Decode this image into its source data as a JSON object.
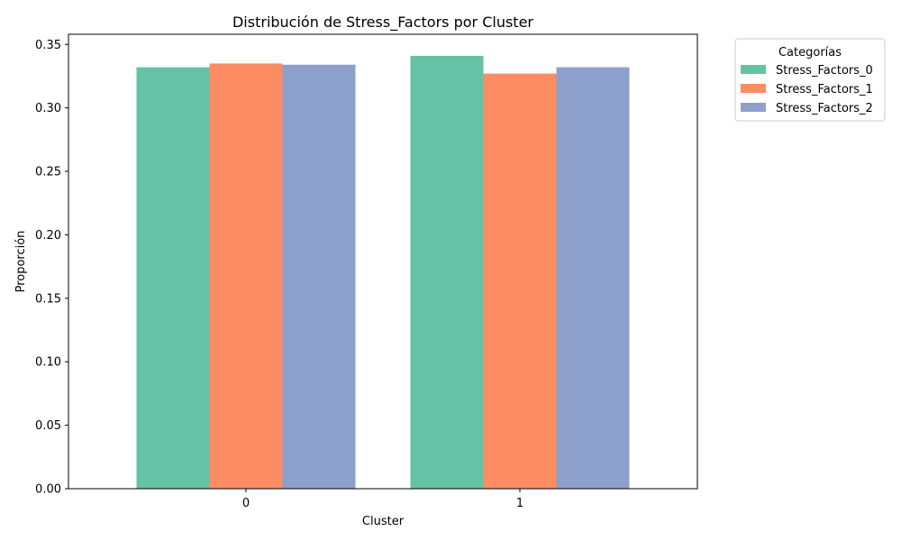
{
  "chart_data": {
    "type": "bar",
    "title": "Distribución de Stress_Factors por Cluster",
    "xlabel": "Cluster",
    "ylabel": "Proporción",
    "categories": [
      "0",
      "1"
    ],
    "series": [
      {
        "name": "Stress_Factors_0",
        "values": [
          0.332,
          0.341
        ],
        "color": "#66c2a5"
      },
      {
        "name": "Stress_Factors_1",
        "values": [
          0.335,
          0.327
        ],
        "color": "#fc8d62"
      },
      {
        "name": "Stress_Factors_2",
        "values": [
          0.334,
          0.332
        ],
        "color": "#8da0cb"
      }
    ],
    "ylim": [
      0,
      0.358
    ],
    "yticks": [
      "0.00",
      "0.05",
      "0.10",
      "0.15",
      "0.20",
      "0.25",
      "0.30",
      "0.35"
    ],
    "grid": false,
    "legend": {
      "title": "Categorías",
      "placement": "outside-top-right"
    }
  }
}
